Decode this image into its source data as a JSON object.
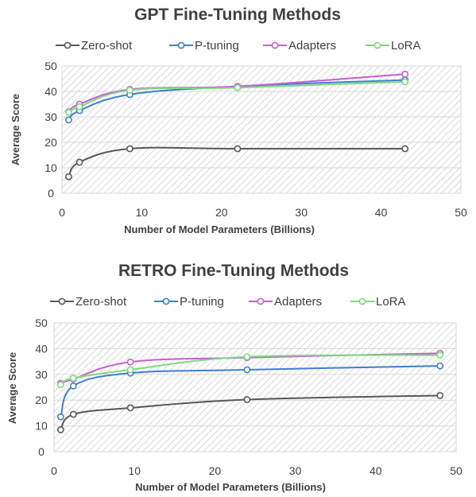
{
  "colors": {
    "zero_shot": "#595959",
    "p_tuning": "#3f7fcf",
    "adapters": "#c55fd3",
    "lora": "#7fd97f",
    "text": "#404040",
    "grid": "#d9d9d9",
    "hatch": "#d0d0d0"
  },
  "chart_data": [
    {
      "type": "line",
      "title": "GPT Fine-Tuning Methods",
      "xlabel": "Number of Model Parameters (Billions)",
      "ylabel": "Average Score",
      "xlim": [
        0,
        50
      ],
      "ylim": [
        0,
        50
      ],
      "xticks": [
        "0",
        "10",
        "20",
        "30",
        "40",
        "50"
      ],
      "yticks": [
        "0",
        "10",
        "20",
        "30",
        "40",
        "50"
      ],
      "grid": true,
      "legend_position": "top",
      "series": [
        {
          "name": "Zero-shot",
          "color_key": "zero_shot",
          "x": [
            0.843,
            2.2,
            8.5,
            22,
            43
          ],
          "y": [
            6.5,
            12.2,
            17.5,
            17.5,
            17.5
          ]
        },
        {
          "name": "P-tuning",
          "color_key": "p_tuning",
          "x": [
            0.843,
            2.2,
            8.5,
            22,
            43
          ],
          "y": [
            28.8,
            32.5,
            38.8,
            42,
            44.5
          ]
        },
        {
          "name": "Adapters",
          "color_key": "adapters",
          "x": [
            0.843,
            2.2,
            8.5,
            22,
            43
          ],
          "y": [
            32,
            35,
            40.8,
            42,
            46.8
          ]
        },
        {
          "name": "LoRA",
          "color_key": "lora",
          "x": [
            0.843,
            2.2,
            8.5,
            22,
            43
          ],
          "y": [
            31.8,
            34,
            40.5,
            41.5,
            43.8
          ]
        }
      ]
    },
    {
      "type": "line",
      "title": "RETRO Fine-Tuning Methods",
      "xlabel": "Number of Model Parameters (Billions)",
      "ylabel": "Average Score",
      "xlim": [
        0,
        50
      ],
      "ylim": [
        0,
        50
      ],
      "xticks": [
        "0",
        "10",
        "20",
        "30",
        "40",
        "50"
      ],
      "yticks": [
        "0",
        "10",
        "20",
        "30",
        "40",
        "50"
      ],
      "grid": true,
      "legend_position": "top",
      "series": [
        {
          "name": "Zero-shot",
          "color_key": "zero_shot",
          "x": [
            0.825,
            2.4,
            9.5,
            24,
            48
          ],
          "y": [
            8.5,
            14.5,
            17,
            20.2,
            21.8
          ]
        },
        {
          "name": "P-tuning",
          "color_key": "p_tuning",
          "x": [
            0.825,
            2.4,
            9.5,
            24,
            48
          ],
          "y": [
            13.5,
            25.5,
            30.5,
            31.8,
            33.3
          ]
        },
        {
          "name": "Adapters",
          "color_key": "adapters",
          "x": [
            0.825,
            2.4,
            9.5,
            24,
            48
          ],
          "y": [
            26.5,
            28.2,
            34.8,
            36.5,
            38.2
          ]
        },
        {
          "name": "LoRA",
          "color_key": "lora",
          "x": [
            0.825,
            2.4,
            9.5,
            24,
            48
          ],
          "y": [
            26,
            28.5,
            31.8,
            36.8,
            37.5
          ]
        }
      ]
    }
  ]
}
